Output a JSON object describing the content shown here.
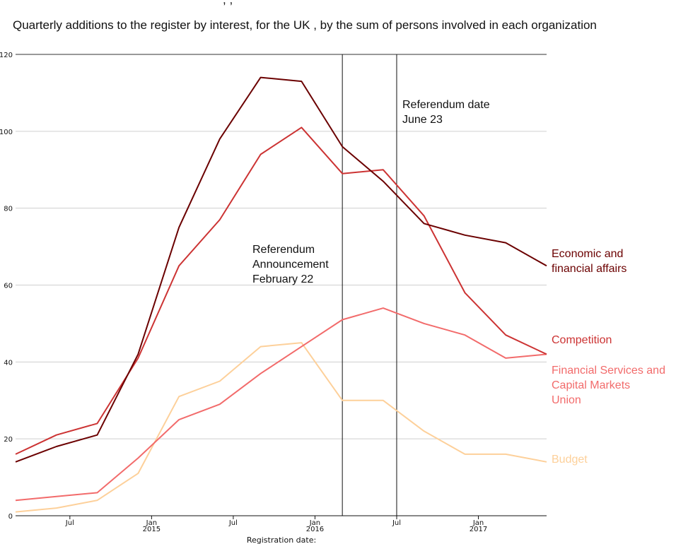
{
  "chart_data": {
    "type": "line",
    "title": "Quarterly additions to the register by interest, for the UK , by the sum of persons involved in each organization",
    "top_fragment": ", ,",
    "xlabel": "Registration date:",
    "ylabel": "",
    "ylim": [
      0,
      120
    ],
    "yticks": [
      0,
      20,
      40,
      60,
      80,
      100,
      120
    ],
    "x": [
      "2014-Q1",
      "2014-Q2",
      "2014-Q3",
      "2014-Q4",
      "2015-Q1",
      "2015-Q2",
      "2015-Q3",
      "2015-Q4",
      "2016-Q1",
      "2016-Q2",
      "2016-Q3",
      "2016-Q4",
      "2017-Q1",
      "2017-Q2"
    ],
    "xticks": [
      {
        "pos": 1.33,
        "line1": "Jul",
        "line2": ""
      },
      {
        "pos": 3.33,
        "line1": "Jan",
        "line2": "2015"
      },
      {
        "pos": 5.33,
        "line1": "Jul",
        "line2": ""
      },
      {
        "pos": 7.33,
        "line1": "Jan",
        "line2": "2016"
      },
      {
        "pos": 9.33,
        "line1": "Jul",
        "line2": ""
      },
      {
        "pos": 11.33,
        "line1": "Jan",
        "line2": "2017"
      }
    ],
    "grid": true,
    "series": [
      {
        "name": "Economic and financial affairs",
        "label_lines": [
          "Economic and",
          "financial affairs"
        ],
        "color": "#6b0000",
        "values": [
          14,
          18,
          21,
          42,
          75,
          98,
          114,
          113,
          96,
          87,
          76,
          73,
          71,
          65
        ]
      },
      {
        "name": "Competition",
        "label_lines": [
          "Competition"
        ],
        "color": "#cc3333",
        "values": [
          16,
          21,
          24,
          41,
          65,
          77,
          94,
          101,
          89,
          90,
          78,
          58,
          47,
          42
        ]
      },
      {
        "name": "Financial Services and Capital Markets Union",
        "label_lines": [
          "Financial Services and",
          "Capital Markets",
          "Union"
        ],
        "color": "#f26b6b",
        "values": [
          4,
          5,
          6,
          15,
          25,
          29,
          37,
          44,
          51,
          54,
          50,
          47,
          41,
          42
        ]
      },
      {
        "name": "Budget",
        "label_lines": [
          "Budget"
        ],
        "color": "#fdd09a",
        "values": [
          1,
          2,
          4,
          11,
          31,
          35,
          44,
          45,
          30,
          30,
          22,
          16,
          16,
          14
        ]
      }
    ],
    "annotations": [
      {
        "pos": 8.0,
        "lines": [
          "Referendum",
          "Announcement",
          "February 22"
        ]
      },
      {
        "pos": 9.33,
        "lines": [
          "Referendum date",
          "June 23"
        ]
      }
    ]
  }
}
